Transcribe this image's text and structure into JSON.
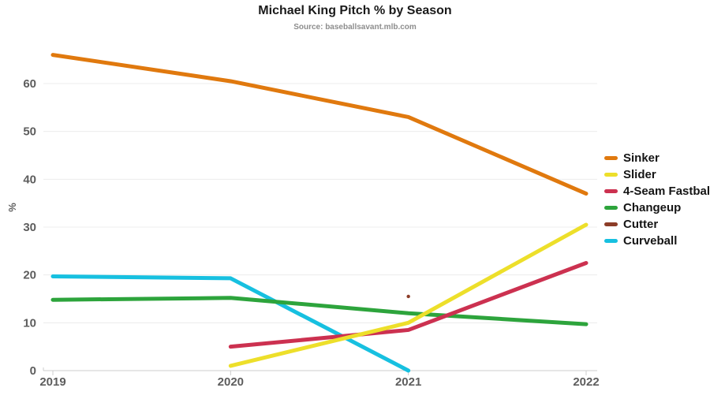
{
  "header": {
    "title": "Michael King Pitch % by Season",
    "subtitle": "Source: baseballsavant.mlb.com"
  },
  "chart_data": {
    "type": "line",
    "x": [
      2019,
      2020,
      2021,
      2022
    ],
    "xticklabels": [
      "2019",
      "2020",
      "2021",
      "2022"
    ],
    "ylabel": "%",
    "ylim": [
      0,
      66
    ],
    "yticks": [
      0,
      10,
      20,
      30,
      40,
      50,
      60
    ],
    "grid": true,
    "legend_position": "right",
    "series": [
      {
        "name": "Sinker",
        "color": "#E0790E",
        "values": [
          66,
          60.5,
          53,
          37
        ]
      },
      {
        "name": "Slider",
        "color": "#EDDF2A",
        "values": [
          null,
          1,
          10,
          30.5
        ]
      },
      {
        "name": "4-Seam Fastball",
        "color": "#CC3150",
        "values": [
          null,
          5,
          8.5,
          22.5
        ]
      },
      {
        "name": "Changeup",
        "color": "#2DA43C",
        "values": [
          14.8,
          15.2,
          12,
          9.7
        ]
      },
      {
        "name": "Cutter",
        "color": "#8C3D28",
        "values": [
          null,
          null,
          15.5,
          null
        ]
      },
      {
        "name": "Curveball",
        "color": "#17C0E0",
        "values": [
          19.7,
          19.3,
          0,
          null
        ]
      }
    ],
    "colors": {
      "grid": "#ececec",
      "axis": "#cccccc",
      "tick_text": "#5d5d5d",
      "background": "#ffffff"
    }
  }
}
